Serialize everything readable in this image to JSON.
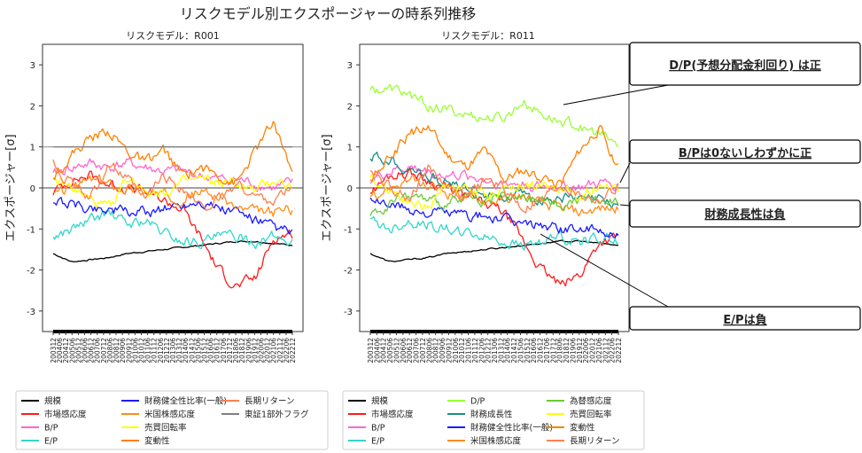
{
  "title": "リスクモデル別エクスポージャーの時系列推移",
  "chart_data": [
    {
      "type": "line",
      "title": "リスクモデル：R001",
      "ylabel": "エクスポージャー[σ]",
      "ylim": [
        -3.5,
        3.5
      ],
      "yticks": [
        -3,
        -2,
        -1,
        0,
        1,
        2,
        3
      ],
      "reference_lines": [
        0,
        1
      ],
      "x_start": "2003/12",
      "x_end": "2022/12",
      "xtick_labels": [
        "200312",
        "200406",
        "200412",
        "200506",
        "200512",
        "200606",
        "200612",
        "200706",
        "200712",
        "200806",
        "200812",
        "200906",
        "200912",
        "201006",
        "201012",
        "201106",
        "201112",
        "201206",
        "201212",
        "201306",
        "201312",
        "201406",
        "201412",
        "201506",
        "201512",
        "201606",
        "201612",
        "201706",
        "201712",
        "201806",
        "201812",
        "201906",
        "201912",
        "202006",
        "202012",
        "202106",
        "202112",
        "202206",
        "202212"
      ],
      "series": [
        {
          "name": "規模",
          "color": "#000000",
          "values": [
            -1.6,
            -1.8,
            -1.75,
            -1.7,
            -1.6,
            -1.55,
            -1.5,
            -1.45,
            -1.4,
            -1.35,
            -1.3,
            -1.3,
            -1.35,
            -1.4
          ]
        },
        {
          "name": "市場感応度",
          "color": "#ff1a1a",
          "values": [
            -0.1,
            0.2,
            0.3,
            0.1,
            0.0,
            -0.1,
            -0.3,
            -0.5,
            -1.2,
            -2.0,
            -2.4,
            -2.2,
            -1.2,
            -1.1
          ]
        },
        {
          "name": "B/P",
          "color": "#ff66cc",
          "values": [
            0.3,
            0.5,
            0.6,
            0.5,
            0.6,
            0.5,
            0.4,
            0.4,
            0.3,
            0.2,
            0.2,
            0.1,
            0.0,
            0.1
          ]
        },
        {
          "name": "E/P",
          "color": "#33d6cc",
          "values": [
            -1.2,
            -1.0,
            -0.8,
            -0.6,
            -0.9,
            -0.8,
            -1.1,
            -1.3,
            -1.3,
            -1.2,
            -1.2,
            -1.3,
            -1.2,
            -1.3
          ]
        },
        {
          "name": "財務健全性比率(一般)",
          "color": "#1a1aff",
          "values": [
            -0.3,
            -0.4,
            -0.5,
            -0.5,
            -0.6,
            -0.6,
            -0.5,
            -0.4,
            -0.3,
            -0.5,
            -0.6,
            -0.8,
            -1.0,
            -1.1
          ]
        },
        {
          "name": "米国株感応度",
          "color": "#ff8c1a",
          "values": [
            -0.2,
            0.0,
            0.2,
            0.1,
            0.0,
            -0.1,
            -0.2,
            -0.2,
            -0.1,
            -0.2,
            -0.5,
            -0.6,
            -0.6,
            -0.5
          ]
        },
        {
          "name": "売買回転率",
          "color": "#ffff00",
          "values": [
            0.2,
            0.0,
            -0.3,
            -0.5,
            0.2,
            0.0,
            -0.1,
            0.1,
            0.2,
            0.1,
            0.1,
            -0.1,
            0.2,
            0.0
          ]
        },
        {
          "name": "変動性",
          "color": "#ff8000",
          "values": [
            0.3,
            0.8,
            1.2,
            1.4,
            0.9,
            0.6,
            0.9,
            0.3,
            0.5,
            0.3,
            0.1,
            0.9,
            1.6,
            0.4
          ]
        },
        {
          "name": "長期リターン",
          "color": "#ff7f50",
          "values": [
            0.6,
            0.1,
            -0.3,
            0.6,
            0.2,
            -0.3,
            0.3,
            0.0,
            -0.5,
            -0.3,
            0.1,
            -0.2,
            -0.3,
            0.0
          ]
        },
        {
          "name": "東証1部外フラグ",
          "color": "#808080",
          "values": [
            1.0,
            1.0,
            1.0,
            1.0,
            1.0,
            1.0,
            1.0,
            1.0,
            1.0,
            1.0,
            1.0,
            1.0,
            1.0,
            1.0
          ]
        }
      ]
    },
    {
      "type": "line",
      "title": "リスクモデル：R011",
      "ylabel": "エクスポージャー[σ]",
      "ylim": [
        -3.5,
        3.5
      ],
      "yticks": [
        -3,
        -2,
        -1,
        0,
        1,
        2,
        3
      ],
      "reference_lines": [
        0
      ],
      "x_start": "2003/12",
      "x_end": "2022/12",
      "xtick_labels": [
        "200312",
        "200406",
        "200412",
        "200506",
        "200512",
        "200606",
        "200612",
        "200706",
        "200712",
        "200806",
        "200812",
        "200906",
        "200912",
        "201006",
        "201012",
        "201106",
        "201112",
        "201206",
        "201212",
        "201306",
        "201312",
        "201406",
        "201412",
        "201506",
        "201512",
        "201606",
        "201612",
        "201706",
        "201712",
        "201806",
        "201812",
        "201906",
        "201912",
        "202006",
        "202012",
        "202106",
        "202112",
        "202206",
        "202212"
      ],
      "series": [
        {
          "name": "規模",
          "color": "#000000",
          "values": [
            -1.6,
            -1.8,
            -1.75,
            -1.7,
            -1.6,
            -1.55,
            -1.5,
            -1.45,
            -1.4,
            -1.35,
            -1.3,
            -1.3,
            -1.35,
            -1.4
          ]
        },
        {
          "name": "市場感応度",
          "color": "#ff1a1a",
          "values": [
            -0.1,
            0.3,
            0.4,
            0.2,
            0.0,
            -0.2,
            -0.4,
            -0.6,
            -1.3,
            -2.0,
            -2.4,
            -2.1,
            -1.3,
            -1.2
          ]
        },
        {
          "name": "B/P",
          "color": "#ff66cc",
          "values": [
            0.2,
            0.4,
            0.5,
            0.4,
            0.3,
            0.3,
            0.2,
            0.1,
            0.1,
            0.0,
            0.1,
            0.0,
            0.1,
            0.1
          ]
        },
        {
          "name": "E/P",
          "color": "#33d6cc",
          "values": [
            -0.8,
            -1.0,
            -0.8,
            -0.9,
            -1.0,
            -1.1,
            -1.2,
            -1.3,
            -1.4,
            -1.3,
            -1.2,
            -1.3,
            -1.2,
            -1.3
          ]
        },
        {
          "name": "D/P",
          "color": "#99ff33",
          "values": [
            2.4,
            2.4,
            2.3,
            2.0,
            1.9,
            1.8,
            1.7,
            1.7,
            2.1,
            1.8,
            1.6,
            1.5,
            1.3,
            1.0
          ]
        },
        {
          "name": "財務成長性",
          "color": "#1a8c8c",
          "values": [
            0.8,
            0.7,
            0.5,
            0.3,
            0.1,
            0.0,
            -0.1,
            -0.2,
            -0.2,
            -0.3,
            -0.2,
            -0.3,
            -0.3,
            -0.4
          ]
        },
        {
          "name": "財務健全性比率(一般)",
          "color": "#1a1aff",
          "values": [
            -0.3,
            -0.4,
            -0.5,
            -0.6,
            -0.6,
            -0.7,
            -0.7,
            -0.8,
            -0.9,
            -0.9,
            -1.0,
            -1.0,
            -1.1,
            -1.1
          ]
        },
        {
          "name": "米国株感応度",
          "color": "#ff8c1a",
          "values": [
            -0.2,
            0.0,
            0.2,
            0.0,
            -0.1,
            -0.2,
            -0.3,
            -0.3,
            -0.2,
            -0.4,
            -0.5,
            -0.6,
            -0.5,
            -0.5
          ]
        },
        {
          "name": "為替感応度",
          "color": "#66cc33",
          "values": [
            -0.6,
            -0.4,
            -0.2,
            -0.3,
            -0.4,
            -0.3,
            -0.3,
            -0.2,
            -0.3,
            -0.3,
            -0.4,
            -0.3,
            -0.3,
            -0.3
          ]
        },
        {
          "name": "売買回転率",
          "color": "#ffff00",
          "values": [
            0.2,
            0.0,
            -0.3,
            -0.5,
            0.1,
            0.0,
            -0.2,
            0.0,
            0.1,
            0.0,
            0.0,
            -0.2,
            0.1,
            0.0
          ]
        },
        {
          "name": "変動性",
          "color": "#ff8000",
          "values": [
            0.2,
            0.7,
            1.3,
            1.5,
            0.8,
            0.5,
            0.9,
            0.2,
            0.4,
            0.3,
            0.1,
            0.9,
            1.5,
            0.5
          ]
        },
        {
          "name": "長期リターン",
          "color": "#ff7f50",
          "values": [
            0.5,
            0.1,
            -0.3,
            0.5,
            0.1,
            -0.3,
            0.2,
            0.0,
            -0.5,
            -0.3,
            0.1,
            -0.2,
            -0.3,
            0.0
          ]
        }
      ]
    }
  ],
  "annotations": [
    {
      "text": "D/P(予想分配金利回り) は正"
    },
    {
      "text": "B/Pは0ないしわずかに正"
    },
    {
      "text": "財務成長性は負"
    },
    {
      "text": "E/Pは負"
    }
  ]
}
